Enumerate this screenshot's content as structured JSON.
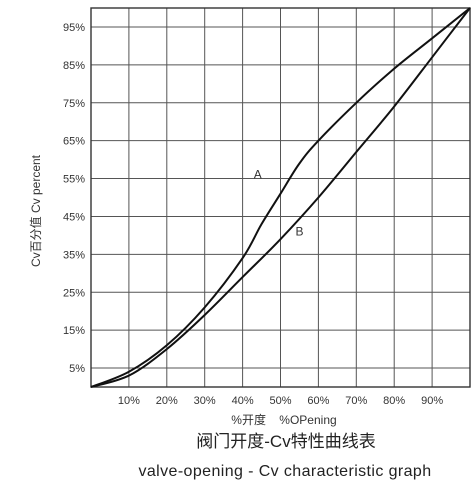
{
  "chart_data": {
    "type": "line",
    "title": "阀门开度-Cv特性曲线表",
    "subtitle": "valve-opening - Cv characteristic graph",
    "xlabel": "%开度    %OPening",
    "ylabel": "Cv百分值   Cv percent",
    "xlim": [
      0,
      100
    ],
    "ylim": [
      0,
      100
    ],
    "x_ticks": [
      "10%",
      "20%",
      "30%",
      "40%",
      "50%",
      "60%",
      "70%",
      "80%",
      "90%"
    ],
    "y_ticks": [
      "5%",
      "15%",
      "25%",
      "35%",
      "45%",
      "55%",
      "65%",
      "75%",
      "85%",
      "95%"
    ],
    "grid": true,
    "series": [
      {
        "name": "A",
        "x": [
          0,
          10,
          20,
          30,
          40,
          45,
          50,
          55,
          60,
          70,
          80,
          90,
          100
        ],
        "values": [
          0,
          4,
          11,
          21,
          34,
          43,
          51,
          59,
          65,
          75,
          84,
          92,
          100
        ]
      },
      {
        "name": "B",
        "x": [
          0,
          10,
          20,
          30,
          40,
          50,
          60,
          70,
          80,
          90,
          100
        ],
        "values": [
          0,
          3,
          10,
          19,
          29,
          39,
          50,
          62,
          74,
          87,
          100
        ]
      }
    ]
  }
}
